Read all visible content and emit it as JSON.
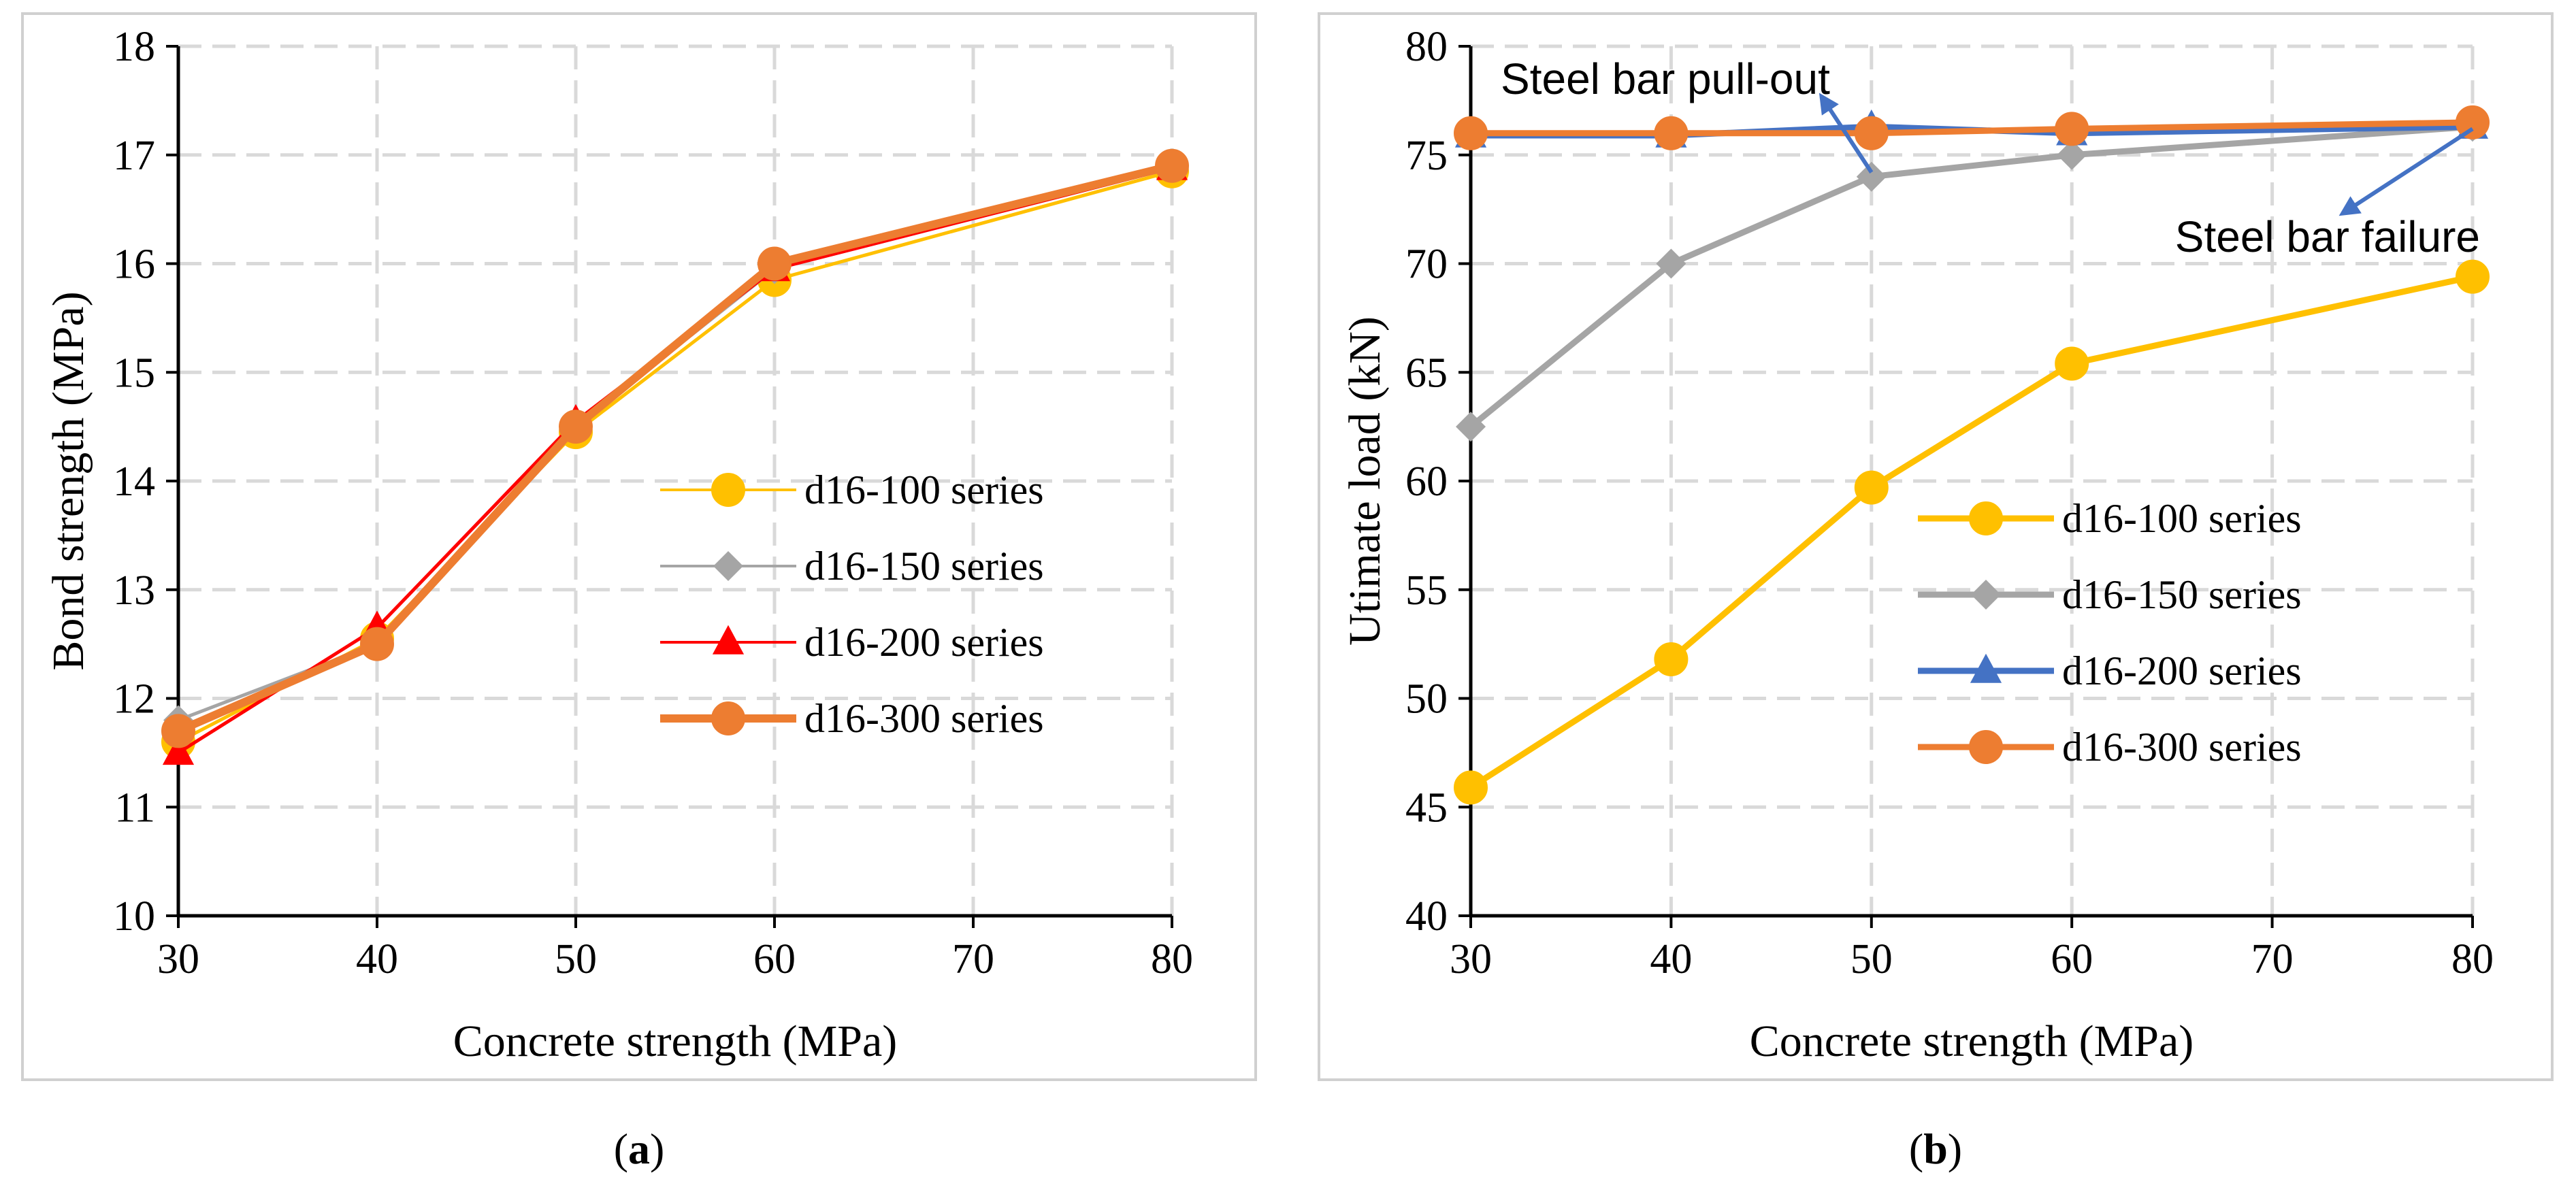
{
  "chart_data": [
    {
      "type": "line",
      "panel": "a",
      "caption_open": "(",
      "caption_letter": "a",
      "caption_close": ")",
      "xlabel": "Concrete strength (MPa)",
      "ylabel": "Bond strength (MPa)",
      "xlim": [
        30,
        80
      ],
      "ylim": [
        10,
        18
      ],
      "xticks": [
        30,
        40,
        50,
        60,
        70,
        80
      ],
      "yticks": [
        10,
        11,
        12,
        13,
        14,
        15,
        16,
        17,
        18
      ],
      "grid": true,
      "legend_position": "center-right",
      "x": [
        30,
        40,
        50,
        60,
        80
      ],
      "series": [
        {
          "name": "d16-100 series",
          "color": "#FFC000",
          "marker": "circle",
          "values": [
            11.6,
            12.55,
            14.45,
            15.85,
            16.85
          ]
        },
        {
          "name": "d16-150 series",
          "color": "#A5A5A5",
          "marker": "diamond",
          "values": [
            11.8,
            12.5,
            14.5,
            15.95,
            16.88
          ]
        },
        {
          "name": "d16-200 series",
          "color": "#FF0000",
          "marker": "triangle",
          "values": [
            11.5,
            12.65,
            14.55,
            15.95,
            16.88
          ]
        },
        {
          "name": "d16-300 series",
          "color": "#ED7D31",
          "marker": "circle",
          "values": [
            11.7,
            12.5,
            14.5,
            16.0,
            16.9
          ]
        }
      ]
    },
    {
      "type": "line",
      "panel": "b",
      "caption_open": "(",
      "caption_letter": "b",
      "caption_close": ")",
      "xlabel": "Concrete strength (MPa)",
      "ylabel": "Utimate load (kN)",
      "xlim": [
        30,
        80
      ],
      "ylim": [
        40,
        80
      ],
      "xticks": [
        30,
        40,
        50,
        60,
        70,
        80
      ],
      "yticks": [
        40,
        45,
        50,
        55,
        60,
        65,
        70,
        75,
        80
      ],
      "grid": true,
      "legend_position": "lower-right",
      "x": [
        30,
        40,
        50,
        60,
        80
      ],
      "series": [
        {
          "name": "d16-100 series",
          "color": "#FFC000",
          "marker": "circle",
          "values": [
            45.9,
            51.8,
            59.7,
            65.4,
            69.4
          ]
        },
        {
          "name": "d16-150 series",
          "color": "#A5A5A5",
          "marker": "diamond",
          "values": [
            62.5,
            70.0,
            74.0,
            75.0,
            76.3
          ]
        },
        {
          "name": "d16-200 series",
          "color": "#4472C4",
          "marker": "triangle",
          "values": [
            75.9,
            75.9,
            76.3,
            76.0,
            76.3
          ]
        },
        {
          "name": "d16-300 series",
          "color": "#ED7D31",
          "marker": "circle",
          "values": [
            76.0,
            76.0,
            76.0,
            76.2,
            76.5
          ]
        }
      ],
      "annotations": [
        {
          "text": "Steel bar pull-out",
          "arrow_color": "#4472C4",
          "arrow_from": [
            50,
            74.2
          ],
          "arrow_to": [
            47.5,
            77.7
          ]
        },
        {
          "text": "Steel bar failure",
          "arrow_color": "#4472C4",
          "arrow_from": [
            80,
            76.2
          ],
          "arrow_to": [
            73.5,
            72.3
          ]
        }
      ]
    }
  ]
}
